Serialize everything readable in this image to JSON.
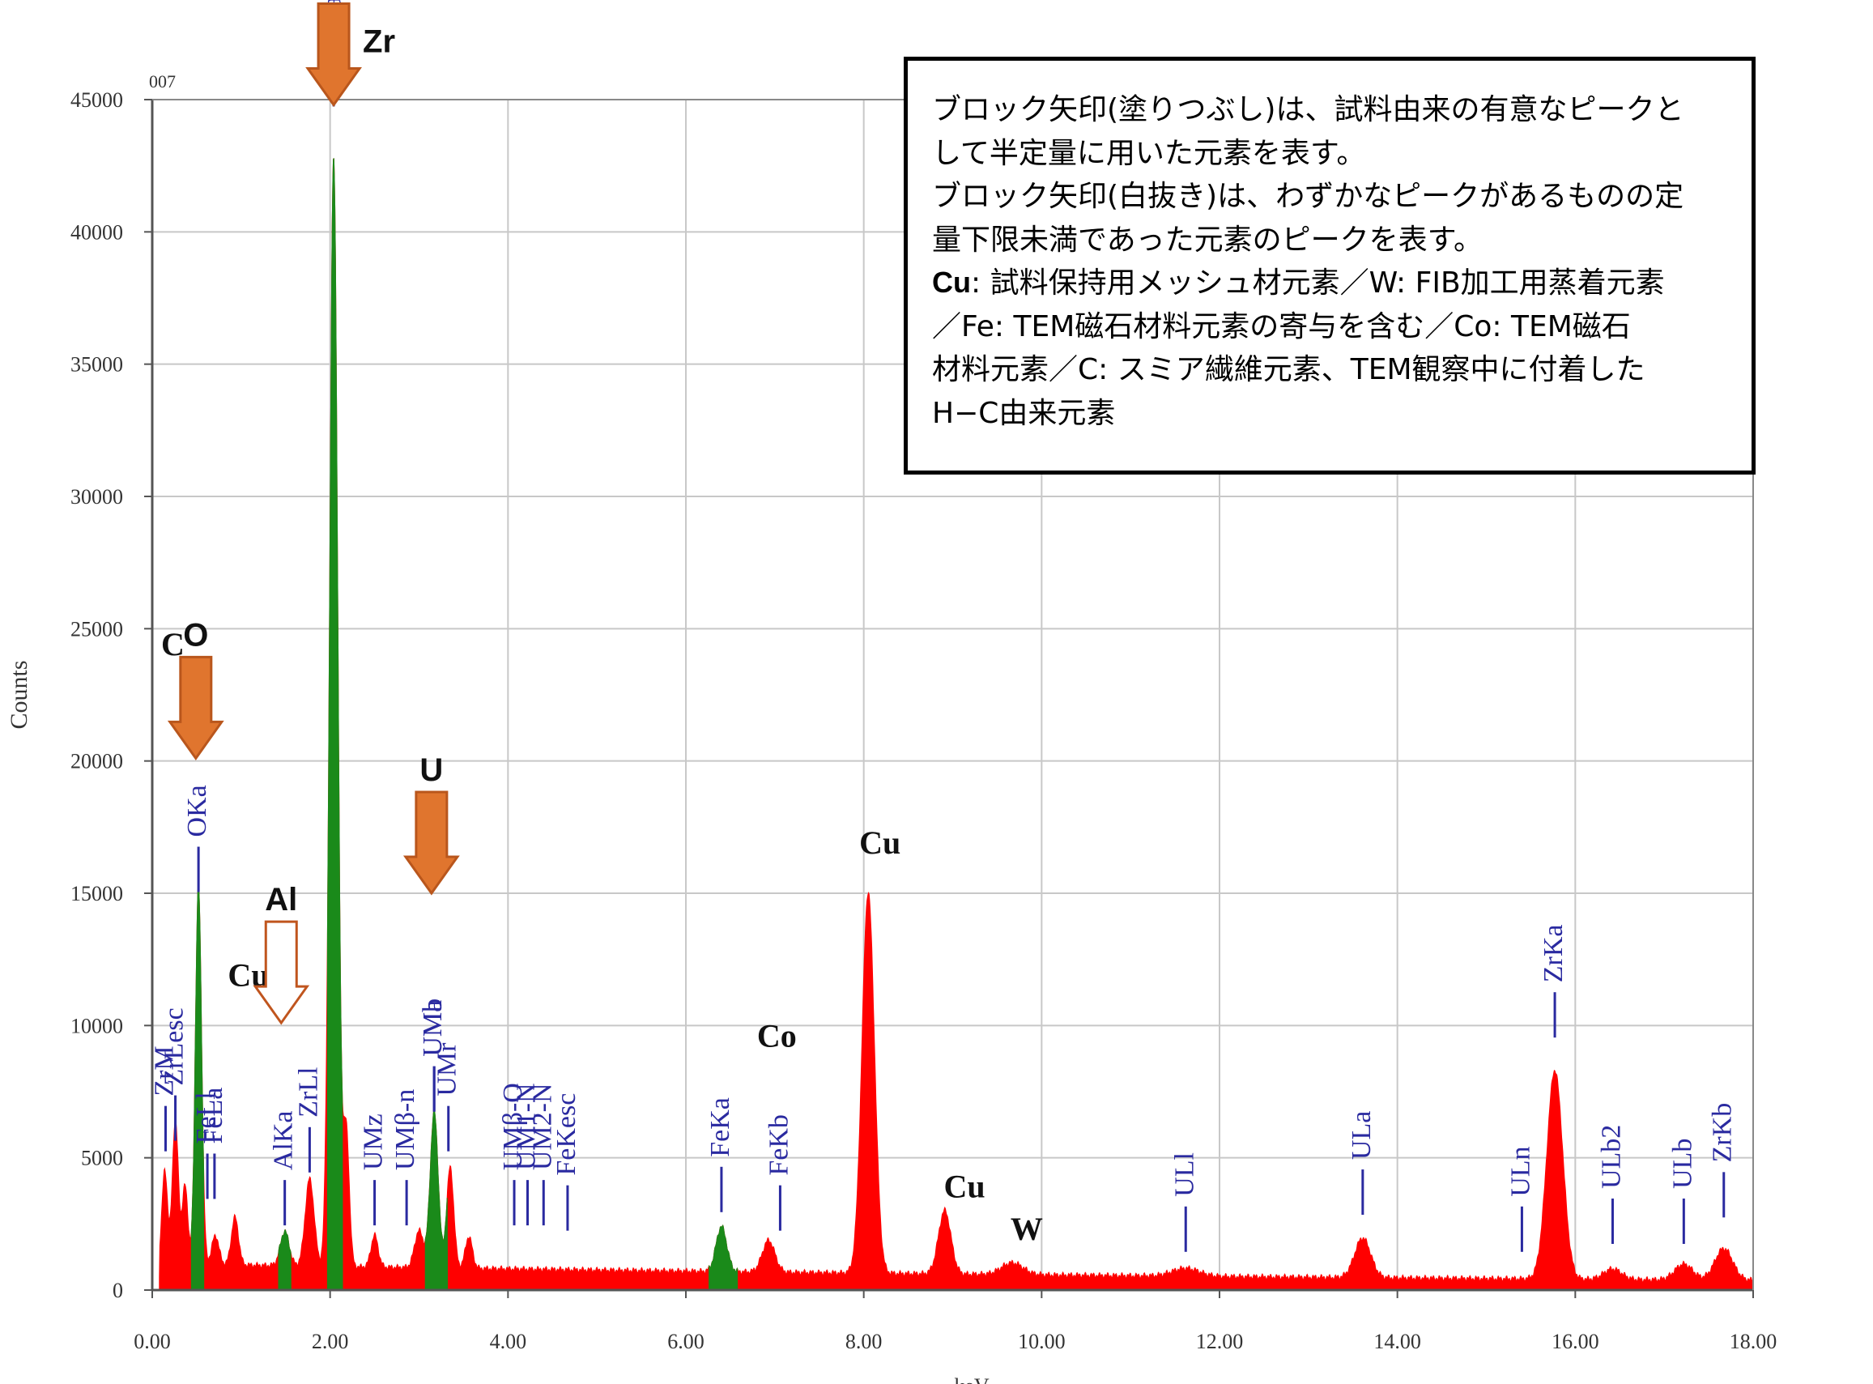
{
  "chart_data": {
    "type": "area",
    "panel_id": "007",
    "xlabel": "keV",
    "ylabel": "Counts",
    "xlim": [
      0,
      18
    ],
    "ylim": [
      0,
      45000
    ],
    "x_ticks": [
      "0.00",
      "2.00",
      "4.00",
      "6.00",
      "8.00",
      "10.00",
      "12.00",
      "14.00",
      "16.00",
      "18.00"
    ],
    "y_ticks": [
      "0",
      "5000",
      "10000",
      "15000",
      "20000",
      "25000",
      "30000",
      "35000",
      "40000",
      "45000"
    ],
    "grid": true,
    "background_level": 1000,
    "colors": {
      "spectrum": "#ff0000",
      "quantified_peaks": "#1a8a1a",
      "peak_labels": "#2a2aa0",
      "arrows": "#e0752e",
      "arrow_outline": "#c0551e"
    },
    "peaks": [
      {
        "x": 0.14,
        "y": 3600,
        "w": 0.03
      },
      {
        "x": 0.26,
        "y": 5400,
        "w": 0.035
      },
      {
        "x": 0.37,
        "y": 3000,
        "w": 0.03
      },
      {
        "x": 0.52,
        "y": 14300,
        "w": 0.035
      },
      {
        "x": 0.71,
        "y": 1100,
        "w": 0.04
      },
      {
        "x": 0.93,
        "y": 1800,
        "w": 0.04
      },
      {
        "x": 1.49,
        "y": 1300,
        "w": 0.05
      },
      {
        "x": 1.77,
        "y": 3300,
        "w": 0.05
      },
      {
        "x": 2.04,
        "y": 42000,
        "w": 0.045
      },
      {
        "x": 2.18,
        "y": 5200,
        "w": 0.035
      },
      {
        "x": 2.5,
        "y": 1200,
        "w": 0.04
      },
      {
        "x": 3.0,
        "y": 1400,
        "w": 0.05
      },
      {
        "x": 3.17,
        "y": 5900,
        "w": 0.045
      },
      {
        "x": 3.35,
        "y": 3800,
        "w": 0.04
      },
      {
        "x": 3.56,
        "y": 1200,
        "w": 0.04
      },
      {
        "x": 6.4,
        "y": 1700,
        "w": 0.06
      },
      {
        "x": 6.93,
        "y": 1200,
        "w": 0.07
      },
      {
        "x": 8.05,
        "y": 14400,
        "w": 0.07
      },
      {
        "x": 8.91,
        "y": 2400,
        "w": 0.07
      },
      {
        "x": 9.67,
        "y": 450,
        "w": 0.12
      },
      {
        "x": 11.62,
        "y": 300,
        "w": 0.15
      },
      {
        "x": 13.61,
        "y": 1500,
        "w": 0.09
      },
      {
        "x": 15.77,
        "y": 7900,
        "w": 0.09
      },
      {
        "x": 16.42,
        "y": 400,
        "w": 0.1
      },
      {
        "x": 17.22,
        "y": 600,
        "w": 0.1
      },
      {
        "x": 17.67,
        "y": 1200,
        "w": 0.1
      }
    ],
    "green_ranges": [
      [
        0.44,
        0.58
      ],
      [
        1.42,
        1.56
      ],
      [
        1.97,
        2.14
      ],
      [
        3.07,
        3.32
      ],
      [
        6.26,
        6.58
      ]
    ],
    "line_markers": [
      {
        "label": "ZrM",
        "x": 0.15,
        "y": 5000
      },
      {
        "label": "ZrLesc",
        "x": 0.26,
        "y": 5400
      },
      {
        "label": "FeLl",
        "x": 0.62,
        "y": 3200
      },
      {
        "label": "FeLa",
        "x": 0.7,
        "y": 3200
      },
      {
        "label": "OKa",
        "x": 0.52,
        "y": 14800
      },
      {
        "label": "AlKa",
        "x": 1.49,
        "y": 2200
      },
      {
        "label": "ZrLl",
        "x": 1.77,
        "y": 4200
      },
      {
        "label": "ZrLa",
        "x": 2.04,
        "y": 44500
      },
      {
        "label": "UMz",
        "x": 2.5,
        "y": 2200
      },
      {
        "label": "UMβ-n",
        "x": 2.86,
        "y": 2200
      },
      {
        "label": "UMb",
        "x": 3.17,
        "y": 6500
      },
      {
        "label": "UMa",
        "x": 3.17,
        "y": 6500
      },
      {
        "label": "UMr",
        "x": 3.33,
        "y": 5000
      },
      {
        "label": "UMβ-O",
        "x": 4.07,
        "y": 2200
      },
      {
        "label": "UM1-N",
        "x": 4.22,
        "y": 2200
      },
      {
        "label": "UM2-N",
        "x": 4.4,
        "y": 2200
      },
      {
        "label": "FeKesc",
        "x": 4.67,
        "y": 2000
      },
      {
        "label": "FeKa",
        "x": 6.4,
        "y": 2700
      },
      {
        "label": "FeKb",
        "x": 7.06,
        "y": 2000
      },
      {
        "label": "ULl",
        "x": 11.62,
        "y": 1200
      },
      {
        "label": "ULa",
        "x": 13.61,
        "y": 2600
      },
      {
        "label": "ULn",
        "x": 15.4,
        "y": 1200
      },
      {
        "label": "ZrKa",
        "x": 15.77,
        "y": 9300
      },
      {
        "label": "ULb2",
        "x": 16.42,
        "y": 1500
      },
      {
        "label": "ULb",
        "x": 17.22,
        "y": 1500
      },
      {
        "label": "ZrKb",
        "x": 17.67,
        "y": 2500
      }
    ],
    "element_annotations": [
      {
        "label": "C",
        "x": 0.1,
        "y": 24000,
        "style": "serif"
      },
      {
        "label": "Cu",
        "x": 0.85,
        "y": 11500,
        "style": "serif"
      },
      {
        "label": "Cu",
        "x": 7.95,
        "y": 16500,
        "style": "serif"
      },
      {
        "label": "Co",
        "x": 6.8,
        "y": 9200,
        "style": "serif"
      },
      {
        "label": "Cu",
        "x": 8.9,
        "y": 3500,
        "style": "serif"
      },
      {
        "label": "W",
        "x": 9.65,
        "y": 1900,
        "style": "serif"
      }
    ],
    "arrows": [
      {
        "label": "Zr",
        "x": 2.04,
        "y": 44800,
        "filled": true
      },
      {
        "label": "O",
        "x": 0.49,
        "y": 20100,
        "filled": true
      },
      {
        "label": "U",
        "x": 3.14,
        "y": 15000,
        "filled": true
      },
      {
        "label": "Al",
        "x": 1.45,
        "y": 10100,
        "filled": false
      }
    ]
  },
  "note_box": {
    "lines": [
      {
        "lead": "",
        "text": "ブロック矢印(塗りつぶし)は、試料由来の有意なピークと"
      },
      {
        "lead": "",
        "text": "して半定量に用いた元素を表す。"
      },
      {
        "lead": "",
        "text": "ブロック矢印(白抜き)は、わずかなピークがあるものの定"
      },
      {
        "lead": "",
        "text": "量下限未満であった元素のピークを表す。"
      },
      {
        "lead": "Cu",
        "text": ": 試料保持用メッシュ材元素／W: FIB加工用蒸着元素"
      },
      {
        "lead": "",
        "text": "／Fe: TEM磁石材料元素の寄与を含む／Co: TEM磁石"
      },
      {
        "lead": "",
        "text": "材料元素／C: スミア繊維元素、TEM観察中に付着した"
      },
      {
        "lead": "",
        "text": "H−C由来元素"
      }
    ]
  }
}
